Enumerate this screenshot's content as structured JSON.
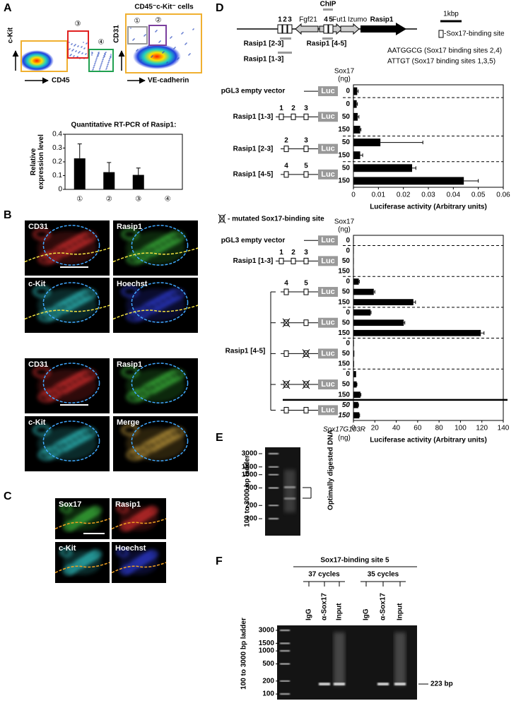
{
  "panel_A": {
    "label": "A",
    "flow_left": {
      "y_label": "c-Kit",
      "x_label": "CD45",
      "gate_labels": [
        "③",
        "④"
      ]
    },
    "flow_right": {
      "title": "CD45⁻c-Kit⁻ cells",
      "y_label": "CD31",
      "x_label": "VE-cadherin",
      "gate_labels": [
        "①",
        "②"
      ]
    },
    "chart": {
      "type": "bar",
      "title": "Quantitative RT-PCR of Rasip1:",
      "y_label": "Relative expression level",
      "categories": [
        "①",
        "②",
        "③",
        "④"
      ],
      "category_colors": [
        "#999999",
        "#7b3f9e",
        "#e02020",
        "#1aa050"
      ],
      "values": [
        0.225,
        0.125,
        0.105,
        0.002
      ],
      "errors": [
        0.105,
        0.07,
        0.05,
        0
      ],
      "color": "#000000",
      "ylim": [
        0,
        0.4
      ],
      "yticks": [
        0,
        0.1,
        0.2,
        0.3,
        0.4
      ]
    }
  },
  "panel_B": {
    "label": "B",
    "images": [
      "CD31",
      "Rasip1",
      "c-Kit",
      "Hoechst",
      "CD31",
      "Rasip1",
      "c-Kit",
      "Merge"
    ]
  },
  "panel_C": {
    "label": "C",
    "images": [
      "Sox17",
      "Rasip1",
      "c-Kit",
      "Hoechst"
    ]
  },
  "panel_D": {
    "label": "D",
    "map": {
      "sites_left": [
        "1",
        "2",
        "3"
      ],
      "genes": [
        "Fgf21",
        "Fut1"
      ],
      "chip_label": "ChIP",
      "sites_right": [
        "4",
        "5"
      ],
      "gene_right": "Izumo",
      "target": "Rasip1",
      "scale_label": "1kbp",
      "legend": "-Sox17-binding site",
      "fragments": [
        "Rasip1 [2-3]",
        "Rasip1 [1-3]",
        "Rasip1 [4-5]"
      ],
      "motifs": [
        "AATGGCG (Sox17 binding sites 2,4)",
        "ATTGT (Sox17 binding sites 1,3,5)"
      ]
    },
    "luc1": {
      "type": "bar",
      "orientation": "horizontal",
      "dose_header": "Sox17",
      "dose_unit": "(ng)",
      "reporter": "Luc",
      "x_label": "Luciferase activity (Arbitrary units)",
      "xlim": [
        0,
        0.06
      ],
      "xticks": [
        0,
        0.01,
        0.02,
        0.03,
        0.04,
        0.05,
        0.06
      ],
      "color": "#000000",
      "groups": [
        {
          "name": "pGL3 empty vector",
          "sites": [],
          "doses": [
            "0"
          ],
          "values": [
            0.0015
          ],
          "errors": [
            0.0004
          ]
        },
        {
          "name": "Rasip1 [1-3]",
          "sites": [
            "1",
            "2",
            "3"
          ],
          "doses": [
            "0",
            "50",
            "150"
          ],
          "values": [
            0.0013,
            0.0017,
            0.0027
          ],
          "errors": [
            0.0003,
            0.0005,
            0.0003
          ]
        },
        {
          "name": "Rasip1 [2-3]",
          "sites": [
            "2",
            "3"
          ],
          "doses": [
            "50",
            "150"
          ],
          "values": [
            0.0108,
            0.0027
          ],
          "errors": [
            0.017,
            0.001
          ]
        },
        {
          "name": "Rasip1 [4-5]",
          "sites": [
            "4",
            "5"
          ],
          "doses": [
            "50",
            "150"
          ],
          "values": [
            0.0235,
            0.0442
          ],
          "errors": [
            0.0015,
            0.0058
          ]
        }
      ]
    },
    "luc2": {
      "type": "bar",
      "orientation": "horizontal",
      "legend": "- mutated Sox17-binding site",
      "dose_header": "Sox17",
      "dose_unit": "(ng)",
      "reporter": "Luc",
      "x_label": "Luciferase activity (Arbitrary units)",
      "xlim": [
        0,
        140
      ],
      "xticks": [
        0,
        20,
        40,
        60,
        80,
        100,
        120,
        140
      ],
      "color": "#000000",
      "mutant_label": "Sox17G103R",
      "mutant_unit": "(ng)",
      "groups": [
        {
          "name": "pGL3 empty vector",
          "sites": [],
          "doses": [
            "0"
          ],
          "values": [
            0.4
          ],
          "errors": [
            0
          ]
        },
        {
          "name": "Rasip1 [1-3]",
          "sites": [
            "1",
            "2",
            "3"
          ],
          "doses": [
            "0",
            "50",
            "150"
          ],
          "values": [
            0.4,
            0.4,
            0.4
          ],
          "errors": [
            0,
            0,
            0
          ]
        }
      ],
      "bracket": {
        "name": "Rasip1 [4-5]",
        "sites": [
          "4",
          "5"
        ],
        "variants": [
          {
            "mutated": [
              false,
              false
            ],
            "mutant_sox17": false,
            "doses": [
              "0",
              "50",
              "150"
            ],
            "values": [
              5,
              19,
              56
            ],
            "errors": [
              0.5,
              1,
              2
            ]
          },
          {
            "mutated": [
              true,
              false
            ],
            "mutant_sox17": false,
            "doses": [
              "0",
              "50",
              "150"
            ],
            "values": [
              16,
              47,
              119
            ],
            "errors": [
              0.5,
              1,
              3
            ]
          },
          {
            "mutated": [
              false,
              true
            ],
            "mutant_sox17": false,
            "doses": [
              "0",
              "50",
              "150"
            ],
            "values": [
              0.5,
              0.8,
              0.6
            ],
            "errors": [
              0,
              0,
              0
            ]
          },
          {
            "mutated": [
              true,
              true
            ],
            "mutant_sox17": false,
            "doses": [
              "0",
              "50",
              "150"
            ],
            "values": [
              2.5,
              3,
              6.5
            ],
            "errors": [
              0,
              0.3,
              0.5
            ]
          },
          {
            "mutated": [
              false,
              false
            ],
            "mutant_sox17": true,
            "doses": [
              "50",
              "150"
            ],
            "values": [
              4.5,
              5.5
            ],
            "errors": [
              0.3,
              0.3
            ]
          }
        ]
      }
    }
  },
  "panel_E": {
    "label": "E",
    "ladder_label": "100 to 3000 bp ladder",
    "ladder_sizes": [
      "3000",
      "1500",
      "1000",
      "500",
      "200",
      "100"
    ],
    "band_label": "Optimally digested DNA"
  },
  "panel_F": {
    "label": "F",
    "title": "Sox17-binding site 5",
    "conditions": [
      {
        "name": "37 cycles",
        "lanes": [
          "IgG",
          "α-Sox17",
          "Input"
        ]
      },
      {
        "name": "35 cycles",
        "lanes": [
          "IgG",
          "α-Sox17",
          "Input"
        ]
      }
    ],
    "ladder_label": "100 to 3000 bp ladder",
    "ladder_sizes": [
      "3000",
      "1500",
      "1000",
      "500",
      "200",
      "100"
    ],
    "band_label": "223 bp"
  }
}
